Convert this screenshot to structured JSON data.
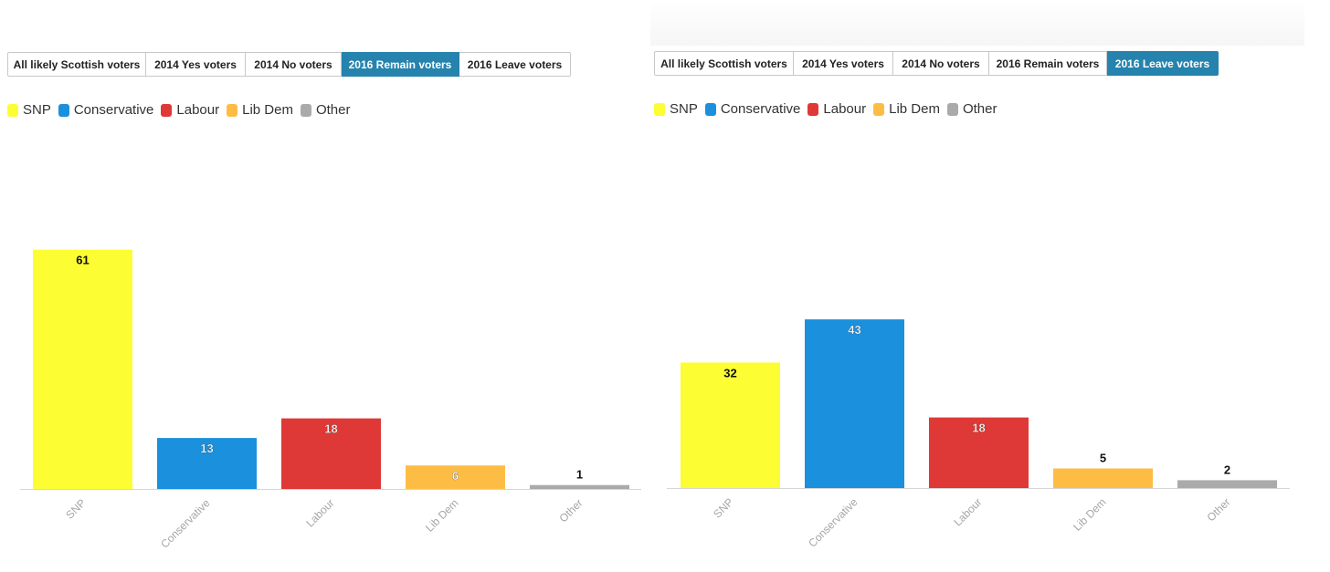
{
  "colors": {
    "SNP": "#fdfd33",
    "Conservative": "#1b90dd",
    "Labour": "#de3936",
    "Lib Dem": "#fdbd45",
    "Other": "#aaaaaa",
    "tab_active": "#2583ad"
  },
  "panels": [
    {
      "tabs": [
        "All likely Scottish voters",
        "2014 Yes voters",
        "2014 No voters",
        "2016 Remain voters",
        "2016 Leave voters"
      ],
      "active_tab": "2016 Remain voters",
      "legend": [
        "SNP",
        "Conservative",
        "Labour",
        "Lib Dem",
        "Other"
      ]
    },
    {
      "tabs": [
        "All likely Scottish voters",
        "2014 Yes voters",
        "2014 No voters",
        "2016 Remain voters",
        "2016 Leave voters"
      ],
      "active_tab": "2016 Leave voters",
      "legend": [
        "SNP",
        "Conservative",
        "Labour",
        "Lib Dem",
        "Other"
      ]
    }
  ],
  "chart_data": [
    {
      "type": "bar",
      "categories": [
        "SNP",
        "Conservative",
        "Labour",
        "Lib Dem",
        "Other"
      ],
      "values": [
        61,
        13,
        18,
        6,
        1
      ],
      "title": "",
      "xlabel": "",
      "ylabel": "",
      "grid": false,
      "legend_position": "top-left"
    },
    {
      "type": "bar",
      "categories": [
        "SNP",
        "Conservative",
        "Labour",
        "Lib Dem",
        "Other"
      ],
      "values": [
        32,
        43,
        18,
        5,
        2
      ],
      "title": "",
      "xlabel": "",
      "ylabel": "",
      "grid": false,
      "legend_position": "top-left"
    }
  ]
}
